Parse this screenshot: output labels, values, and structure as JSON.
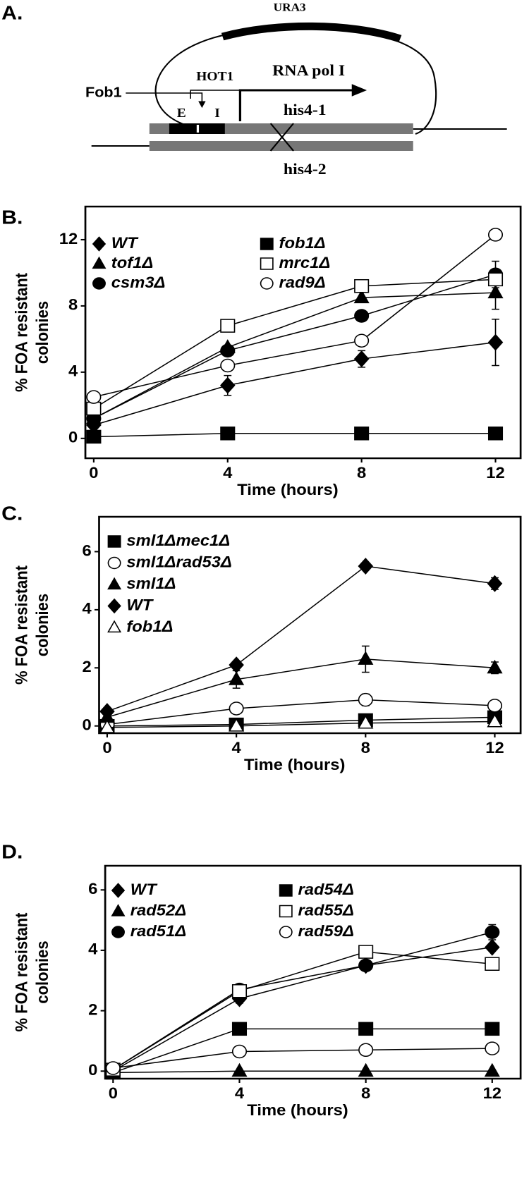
{
  "diagram": {
    "panel": "A.",
    "plasmid": "URA3",
    "hot1": "HOT1",
    "promoter": "RNA pol I",
    "fob1": "Fob1",
    "e_site": "E",
    "i_site": "I",
    "allele_top": "his4-1",
    "allele_bottom": "his4-2"
  },
  "chart_data": [
    {
      "type": "line",
      "panel": "B.",
      "xlabel": "Time (hours)",
      "ylabel": [
        "% FOA resistant",
        "colonies"
      ],
      "x": [
        0,
        4,
        8,
        12
      ],
      "xlim": [
        -0.25,
        12.75
      ],
      "xticks": [
        0,
        4,
        8,
        12
      ],
      "ylim": [
        -1.2,
        14
      ],
      "yticks": [
        0,
        4,
        8,
        12
      ],
      "series": [
        {
          "name": "WT",
          "color": "#000000",
          "marker": "diamond",
          "filled": true,
          "values": [
            0.8,
            3.2,
            4.8,
            5.8
          ],
          "errors": [
            null,
            0.6,
            0.5,
            1.4
          ]
        },
        {
          "name": "tof1Δ",
          "color": "#000000",
          "marker": "triangle",
          "filled": true,
          "values": [
            1.2,
            5.5,
            8.5,
            8.8
          ],
          "errors": [
            null,
            null,
            null,
            1.0
          ]
        },
        {
          "name": "csm3Δ",
          "color": "#000000",
          "marker": "circle",
          "filled": true,
          "values": [
            1.2,
            5.3,
            7.4,
            9.9
          ],
          "errors": [
            null,
            null,
            null,
            0.8
          ]
        },
        {
          "name": "fob1Δ",
          "color": "#000000",
          "marker": "square",
          "filled": true,
          "values": [
            0.1,
            0.3,
            0.3,
            0.3
          ]
        },
        {
          "name": "mrc1Δ",
          "color": "#000000",
          "marker": "square",
          "filled": false,
          "values": [
            1.8,
            6.8,
            9.2,
            9.6
          ]
        },
        {
          "name": "rad9Δ",
          "color": "#000000",
          "marker": "circle",
          "filled": false,
          "values": [
            2.5,
            4.4,
            5.9,
            12.3
          ]
        }
      ]
    },
    {
      "type": "line",
      "panel": "C.",
      "xlabel": "Time (hours)",
      "ylabel": [
        "% FOA resistant",
        "colonies"
      ],
      "x": [
        0,
        4,
        8,
        12
      ],
      "xlim": [
        -0.25,
        12.8
      ],
      "xticks": [
        0,
        4,
        8,
        12
      ],
      "ylim": [
        -0.25,
        7.2
      ],
      "yticks": [
        0,
        2,
        4,
        6
      ],
      "series": [
        {
          "name": "sml1Δmec1Δ",
          "color": "#000000",
          "marker": "square",
          "filled": true,
          "values": [
            0,
            0.05,
            0.2,
            0.3
          ]
        },
        {
          "name": "sml1Δrad53Δ",
          "color": "#000000",
          "marker": "circle",
          "filled": false,
          "values": [
            0.05,
            0.6,
            0.9,
            0.7
          ],
          "errors": [
            null,
            null,
            0.2,
            null
          ]
        },
        {
          "name": "sml1Δ",
          "color": "#000000",
          "marker": "triangle",
          "filled": true,
          "values": [
            0.3,
            1.6,
            2.3,
            2.0
          ],
          "errors": [
            null,
            0.3,
            0.45,
            0.2
          ]
        },
        {
          "name": "WT",
          "color": "#000000",
          "marker": "diamond",
          "filled": true,
          "values": [
            0.5,
            2.1,
            5.5,
            4.9
          ],
          "errors": [
            null,
            null,
            null,
            0.2
          ]
        },
        {
          "name": "fob1Δ",
          "color": "#000000",
          "marker": "triangle",
          "filled": false,
          "values": [
            -0.05,
            0,
            0.1,
            0.15
          ]
        }
      ]
    },
    {
      "type": "line",
      "panel": "D.",
      "xlabel": "Time (hours)",
      "ylabel": [
        "% FOA resistant",
        "colonies"
      ],
      "x": [
        0,
        4,
        8,
        12
      ],
      "xlim": [
        -0.25,
        12.9
      ],
      "xticks": [
        0,
        4,
        8,
        12
      ],
      "ylim": [
        -0.25,
        6.8
      ],
      "yticks": [
        0,
        2,
        4,
        6
      ],
      "series": [
        {
          "name": "WT",
          "color": "#000000",
          "marker": "diamond",
          "filled": true,
          "values": [
            0,
            2.4,
            3.5,
            4.1
          ],
          "errors": [
            null,
            0.15,
            null,
            null
          ]
        },
        {
          "name": "rad52Δ",
          "color": "#000000",
          "marker": "triangle",
          "filled": true,
          "values": [
            -0.05,
            0,
            0,
            0
          ]
        },
        {
          "name": "rad51Δ",
          "color": "#000000",
          "marker": "circle",
          "filled": true,
          "values": [
            0.05,
            2.7,
            3.5,
            4.6
          ],
          "errors": [
            null,
            null,
            null,
            0.25
          ]
        },
        {
          "name": "rad54Δ",
          "color": "#000000",
          "marker": "square",
          "filled": true,
          "values": [
            -0.05,
            1.4,
            1.4,
            1.4
          ]
        },
        {
          "name": "rad55Δ",
          "color": "#000000",
          "marker": "square",
          "filled": false,
          "values": [
            0.05,
            2.65,
            3.95,
            3.55
          ],
          "errors": [
            null,
            null,
            null,
            0.2
          ]
        },
        {
          "name": "rad59Δ",
          "color": "#000000",
          "marker": "circle",
          "filled": false,
          "values": [
            0.1,
            0.65,
            0.7,
            0.75
          ],
          "errors": [
            null,
            0.15,
            null,
            null
          ]
        }
      ]
    }
  ]
}
